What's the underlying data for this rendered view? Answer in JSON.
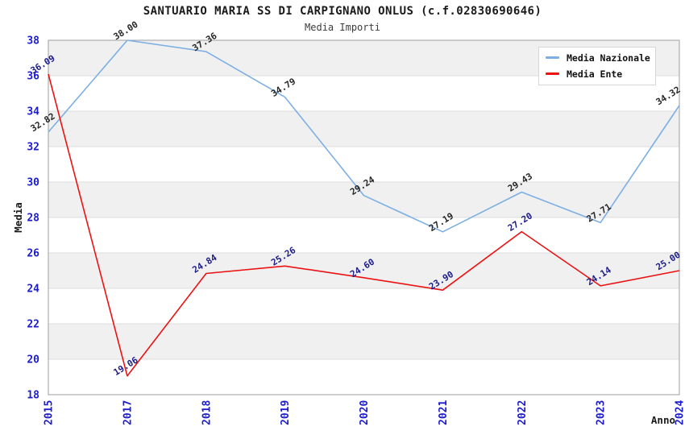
{
  "chart_data": {
    "type": "line",
    "title": "SANTUARIO MARIA SS DI CARPIGNANO ONLUS (c.f.02830690646)",
    "subtitle": "Media Importi",
    "xlabel": "Anno",
    "ylabel": "Media",
    "categories": [
      "2015",
      "2017",
      "2018",
      "2019",
      "2020",
      "2021",
      "2022",
      "2023",
      "2024"
    ],
    "ylim": [
      18,
      38
    ],
    "yticks": [
      18,
      20,
      22,
      24,
      26,
      28,
      30,
      32,
      34,
      36,
      38
    ],
    "grid": "horizontal-bands-alternating",
    "legend_position": "top-right",
    "colors": {
      "tick_label": "#1c1ccc",
      "band": "#f0f0f0",
      "grid_line": "#dcdcdc",
      "plot_border": "#9e9e9e",
      "axis_title": "#1a1a1a"
    },
    "series": [
      {
        "name": "Media Nazionale",
        "color": "#7CAFE4",
        "label_color": "#262626",
        "values": [
          32.82,
          38.0,
          37.36,
          34.79,
          29.24,
          27.19,
          29.43,
          27.71,
          34.32
        ],
        "labels": [
          "32.82",
          "38.00",
          "37.36",
          "34.79",
          "29.24",
          "27.19",
          "29.43",
          "27.71",
          "34.32"
        ]
      },
      {
        "name": "Media Ente",
        "color": "#EC1212",
        "label_color": "#1c1c86",
        "values": [
          36.09,
          19.06,
          24.84,
          25.26,
          24.6,
          23.9,
          27.2,
          24.14,
          25.0
        ],
        "labels": [
          "36.09",
          "19.06",
          "24.84",
          "25.26",
          "24.60",
          "23.90",
          "27.20",
          "24.14",
          "25.00"
        ]
      }
    ]
  }
}
